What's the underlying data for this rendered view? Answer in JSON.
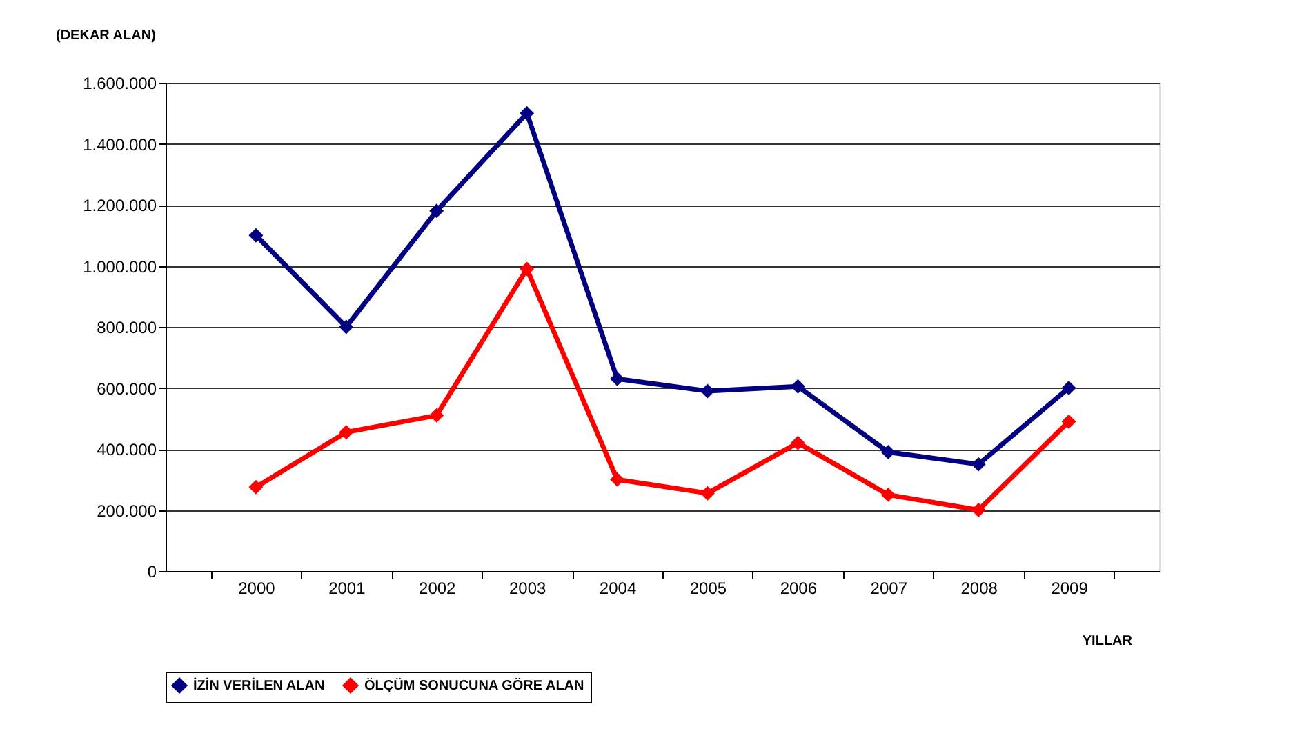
{
  "chart_data": {
    "type": "line",
    "ylabel": "(DEKAR ALAN)",
    "xlabel": "YILLAR",
    "categories": [
      "2000",
      "2001",
      "2002",
      "2003",
      "2004",
      "2005",
      "2006",
      "2007",
      "2008",
      "2009"
    ],
    "series": [
      {
        "name": "İZİN VERİLEN ALAN",
        "color": "#000080",
        "values": [
          1100000,
          800000,
          1180000,
          1500000,
          630000,
          590000,
          605000,
          390000,
          350000,
          600000
        ]
      },
      {
        "name": "ÖLÇÜM SONUCUNA GÖRE ALAN",
        "color": "#ff0000",
        "values": [
          275000,
          455000,
          510000,
          990000,
          300000,
          255000,
          420000,
          250000,
          200000,
          490000
        ]
      }
    ],
    "ylim": [
      0,
      1600000
    ],
    "yticks": [
      0,
      {
        "value": 200000,
        "label": "200.000"
      },
      {
        "value": 400000,
        "label": "400.000"
      },
      {
        "value": 600000,
        "label": "600.000"
      },
      {
        "value": 800000,
        "label": "800.000"
      },
      {
        "value": 1000000,
        "label": "1.000.000"
      },
      {
        "value": 1200000,
        "label": "1.200.000"
      },
      {
        "value": 1400000,
        "label": "1.400.000"
      },
      {
        "value": 1600000,
        "label": "1.600.000"
      }
    ],
    "grid": "y",
    "legend": "bottom",
    "marker": "diamond",
    "line_style": "solid"
  }
}
